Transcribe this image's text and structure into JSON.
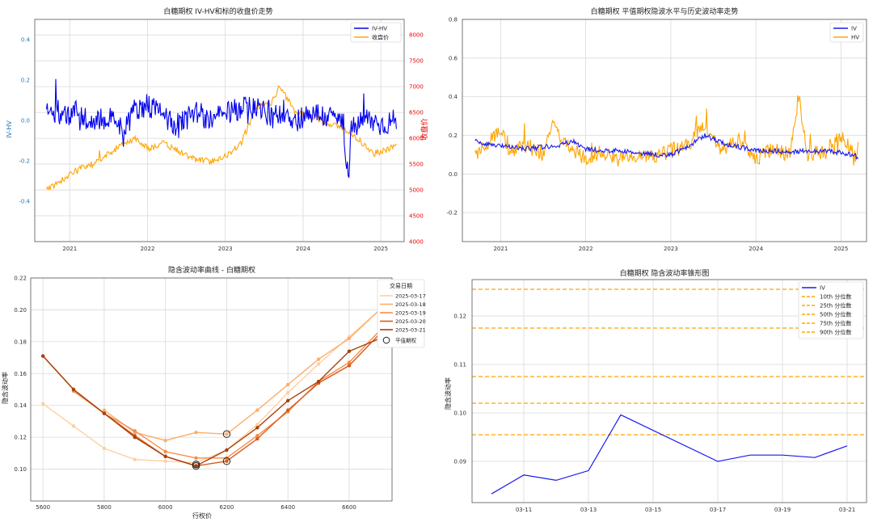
{
  "colors": {
    "iv_hv": "#0000ee",
    "close": "#ffa500",
    "iv": "#1a1aee",
    "hv": "#ffa500",
    "quantile": "#ffa500",
    "right_axis_text": "#ee0000",
    "left_axis_text": "#1f77b4",
    "grid": "#d9d9d9",
    "spine": "#555555",
    "curves": [
      "#fdd0a2",
      "#fdae6b",
      "#f68d45",
      "#d95a20",
      "#a8420c"
    ]
  },
  "chart_data": [
    {
      "id": "panel1",
      "type": "line",
      "title": "白糖期权 IV-HV和标的收盘价走势",
      "ylabel_left": "IV-HV",
      "ylabel_right": "收盘价",
      "x_ticks": [
        "2021",
        "2022",
        "2023",
        "2024",
        "2025"
      ],
      "xlim": [
        "2020-07",
        "2025-04"
      ],
      "ylim_left": [
        -0.6,
        0.5
      ],
      "ylim_right": [
        4000,
        8300
      ],
      "yticks_left": [
        "0.4",
        "0.2",
        "0.0",
        "-0.2",
        "-0.4"
      ],
      "yticks_right": [
        "8000",
        "7500",
        "7000",
        "6500",
        "6000",
        "5500",
        "5000",
        "4500",
        "4000"
      ],
      "legend": [
        "IV-HV",
        "收盘价"
      ],
      "legend_position": "top-right",
      "series": [
        {
          "name": "IV-HV",
          "axis": "left",
          "x": [
            2020.7,
            2020.9,
            2021.1,
            2021.3,
            2021.5,
            2021.7,
            2021.85,
            2022.0,
            2022.2,
            2022.4,
            2022.6,
            2022.8,
            2023.0,
            2023.2,
            2023.4,
            2023.6,
            2023.75,
            2023.9,
            2024.1,
            2024.3,
            2024.5,
            2024.58,
            2024.62,
            2024.8,
            2025.0,
            2025.2
          ],
          "values": [
            0.05,
            0.02,
            0.04,
            -0.02,
            0.03,
            -0.04,
            0.06,
            0.08,
            0.02,
            -0.03,
            0.05,
            0.0,
            0.03,
            0.06,
            0.07,
            0.01,
            0.05,
            0.0,
            0.04,
            0.02,
            0.0,
            -0.29,
            -0.05,
            0.01,
            -0.02,
            0.0
          ]
        },
        {
          "name": "收盘价",
          "axis": "right",
          "x": [
            2020.7,
            2020.9,
            2021.1,
            2021.3,
            2021.5,
            2021.7,
            2021.85,
            2022.0,
            2022.2,
            2022.4,
            2022.6,
            2022.8,
            2023.0,
            2023.2,
            2023.4,
            2023.6,
            2023.7,
            2023.9,
            2024.1,
            2024.3,
            2024.5,
            2024.7,
            2024.9,
            2025.1,
            2025.2
          ],
          "values": [
            5000,
            5200,
            5400,
            5500,
            5700,
            5900,
            6000,
            5800,
            5900,
            5750,
            5600,
            5550,
            5650,
            5900,
            6600,
            6700,
            7000,
            6500,
            6450,
            6300,
            6200,
            6000,
            5700,
            5800,
            5850
          ]
        }
      ]
    },
    {
      "id": "panel2",
      "type": "line",
      "title": "白糖期权 平值期权隐波水平与历史波动率走势",
      "x_ticks": [
        "2021",
        "2022",
        "2023",
        "2024",
        "2025"
      ],
      "xlim": [
        "2020-07",
        "2025-04"
      ],
      "ylim": [
        -0.35,
        0.8
      ],
      "yticks": [
        "0.8",
        "0.6",
        "0.4",
        "0.2",
        "0.0",
        "-0.2"
      ],
      "legend": [
        "IV",
        "HV"
      ],
      "legend_position": "top-right",
      "series": [
        {
          "name": "IV",
          "x": [
            2020.7,
            2020.9,
            2021.1,
            2021.3,
            2021.5,
            2021.7,
            2021.85,
            2022.0,
            2022.2,
            2022.4,
            2022.6,
            2022.8,
            2023.0,
            2023.2,
            2023.4,
            2023.6,
            2023.8,
            2024.0,
            2024.2,
            2024.4,
            2024.6,
            2024.8,
            2025.0,
            2025.2
          ],
          "values": [
            0.17,
            0.15,
            0.14,
            0.13,
            0.14,
            0.15,
            0.17,
            0.13,
            0.12,
            0.12,
            0.11,
            0.1,
            0.1,
            0.14,
            0.2,
            0.16,
            0.14,
            0.12,
            0.12,
            0.11,
            0.12,
            0.12,
            0.11,
            0.09
          ]
        },
        {
          "name": "HV",
          "x": [
            2020.7,
            2020.9,
            2021.0,
            2021.1,
            2021.3,
            2021.5,
            2021.6,
            2021.8,
            2022.0,
            2022.2,
            2022.4,
            2022.6,
            2022.8,
            2023.0,
            2023.2,
            2023.4,
            2023.6,
            2023.8,
            2024.0,
            2024.2,
            2024.4,
            2024.5,
            2024.6,
            2024.8,
            2025.0,
            2025.2
          ],
          "values": [
            0.1,
            0.18,
            0.24,
            0.12,
            0.15,
            0.1,
            0.26,
            0.14,
            0.08,
            0.12,
            0.07,
            0.1,
            0.09,
            0.12,
            0.15,
            0.25,
            0.12,
            0.17,
            0.08,
            0.13,
            0.1,
            0.4,
            0.1,
            0.12,
            0.2,
            0.06
          ]
        }
      ]
    },
    {
      "id": "panel3",
      "type": "line",
      "title": "隐含波动率曲线 - 白糖期权",
      "xlabel": "行权价",
      "ylabel": "隐含波动率",
      "xlim": [
        5560,
        6740
      ],
      "ylim": [
        0.08,
        0.22
      ],
      "xticks": [
        5600,
        5800,
        6000,
        6200,
        6400,
        6600
      ],
      "yticks": [
        "0.22",
        "0.20",
        "0.18",
        "0.16",
        "0.14",
        "0.12",
        "0.10"
      ],
      "legend_title": "交易日期",
      "legend": [
        "2025-03-17",
        "2025-03-18",
        "2025-03-19",
        "2025-03-20",
        "2025-03-21",
        "平值期权"
      ],
      "legend_position": "top-right",
      "x": [
        5600,
        5700,
        5800,
        5900,
        6000,
        6100,
        6200,
        6300,
        6400,
        6500,
        6600,
        6700
      ],
      "series": [
        {
          "name": "2025-03-17",
          "values": [
            0.141,
            0.127,
            0.113,
            0.106,
            0.105,
            0.104,
            0.112,
            0.128,
            0.148,
            0.166,
            0.183,
            0.2
          ]
        },
        {
          "name": "2025-03-18",
          "values": [
            null,
            null,
            0.137,
            0.123,
            0.118,
            0.123,
            0.122,
            0.137,
            0.153,
            0.169,
            0.182,
            0.2
          ]
        },
        {
          "name": "2025-03-19",
          "values": [
            null,
            0.149,
            0.135,
            0.124,
            0.111,
            0.107,
            0.107,
            0.121,
            0.136,
            0.155,
            0.167,
            0.187
          ]
        },
        {
          "name": "2025-03-20",
          "values": [
            0.171,
            0.15,
            0.135,
            0.121,
            0.108,
            0.102,
            0.105,
            0.119,
            0.137,
            0.154,
            0.165,
            0.185
          ]
        },
        {
          "name": "2025-03-21",
          "values": [
            0.171,
            0.15,
            0.135,
            0.12,
            0.108,
            0.102,
            0.112,
            0.126,
            0.143,
            0.155,
            0.174,
            0.182
          ]
        }
      ],
      "atm_points": [
        {
          "x": 6100,
          "y": 0.102
        },
        {
          "x": 6200,
          "y": 0.122
        },
        {
          "x": 6200,
          "y": 0.105
        },
        {
          "x": 6100,
          "y": 0.103
        }
      ]
    },
    {
      "id": "panel4",
      "type": "line",
      "title": "白糖期权 隐含波动率锥形图",
      "ylabel": "隐含波动率",
      "xticks": [
        "03-11",
        "03-13",
        "03-15",
        "03-17",
        "03-19",
        "03-21"
      ],
      "yticks": [
        "0.12",
        "0.11",
        "0.10",
        "0.09"
      ],
      "ylim": [
        0.0815,
        0.1275
      ],
      "x": [
        "03-10",
        "03-11",
        "03-12",
        "03-13",
        "03-14",
        "03-17",
        "03-18",
        "03-19",
        "03-20",
        "03-21"
      ],
      "x_pos": [
        0,
        1,
        2,
        3,
        4,
        7,
        8,
        9,
        10,
        11
      ],
      "xlim": [
        -0.6,
        11.6
      ],
      "series": [
        {
          "name": "IV",
          "values": [
            0.0833,
            0.0872,
            0.0861,
            0.0881,
            0.0996,
            0.09,
            0.0913,
            0.0913,
            0.0908,
            0.0932
          ]
        }
      ],
      "quantiles": [
        {
          "name": "10th 分位数",
          "value": 0.0955
        },
        {
          "name": "25th 分位数",
          "value": 0.102
        },
        {
          "name": "50th 分位数",
          "value": 0.1075
        },
        {
          "name": "75th 分位数",
          "value": 0.1175
        },
        {
          "name": "90th 分位数",
          "value": 0.1255
        }
      ],
      "legend": [
        "IV",
        "10th 分位数",
        "25th 分位数",
        "50th 分位数",
        "75th 分位数",
        "90th 分位数"
      ],
      "legend_position": "top-right"
    }
  ]
}
